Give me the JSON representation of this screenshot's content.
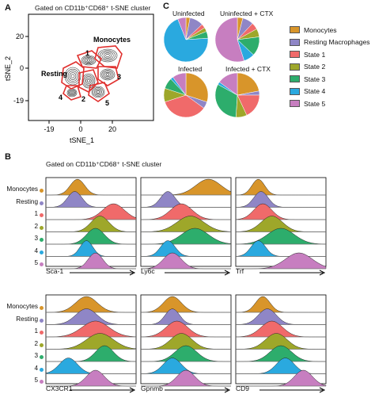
{
  "panels": {
    "a": {
      "letter": "A",
      "gate_label": "Gated on CD11b⁺CD68⁺ t-SNE cluster",
      "xlabel": "tSNE_1",
      "ylabel": "tSNE_2",
      "xticks": [
        "-19",
        "0",
        "20"
      ],
      "yticks": [
        "20",
        "0",
        "-19"
      ],
      "cluster_labels": [
        "Monocytes",
        "Resting",
        "1",
        "2",
        "3",
        "4",
        "5"
      ],
      "gate_color": "#e0302e"
    },
    "b": {
      "letter": "B",
      "gate_label": "Gated on CD11b⁺CD68⁺ t-SNE cluster",
      "markers_row1": [
        "Sca-1",
        "Ly6c",
        "Trf"
      ],
      "markers_row2": [
        "CX3CR1",
        "Gpnmb",
        "CD9"
      ]
    },
    "c": {
      "letter": "C",
      "pies": [
        {
          "title": "Uninfected",
          "values": [
            3,
            10,
            3,
            3,
            5,
            70,
            6
          ]
        },
        {
          "title": "Uninfected + CTX",
          "values": [
            4,
            8,
            5,
            6,
            14,
            8,
            55
          ]
        },
        {
          "title": "Infected",
          "values": [
            30,
            5,
            35,
            10,
            8,
            2,
            10
          ]
        },
        {
          "title": "Infected + CTX",
          "values": [
            22,
            3,
            18,
            8,
            32,
            2,
            15
          ]
        }
      ]
    }
  },
  "populations": [
    {
      "name": "Monocytes",
      "color": "#d8952a"
    },
    {
      "name": "Resting Macrophages",
      "short": "Resting",
      "color": "#8f86c6"
    },
    {
      "name": "State 1",
      "short": "1",
      "color": "#f06a6a"
    },
    {
      "name": "State 2",
      "short": "2",
      "color": "#9ea72a"
    },
    {
      "name": "State 3",
      "short": "3",
      "color": "#2dad6c"
    },
    {
      "name": "State 4",
      "short": "4",
      "color": "#2aa9df"
    },
    {
      "name": "State 5",
      "short": "5",
      "color": "#c77ec0"
    }
  ],
  "chart_data": {
    "type": "pie",
    "series_labels": [
      "Monocytes",
      "Resting Macrophages",
      "State 1",
      "State 2",
      "State 3",
      "State 4",
      "State 5"
    ],
    "pies": [
      {
        "title": "Uninfected",
        "values": [
          3,
          10,
          3,
          3,
          5,
          70,
          6
        ]
      },
      {
        "title": "Uninfected + CTX",
        "values": [
          4,
          8,
          5,
          6,
          14,
          8,
          55
        ]
      },
      {
        "title": "Infected",
        "values": [
          30,
          5,
          35,
          10,
          8,
          2,
          10
        ]
      },
      {
        "title": "Infected + CTX",
        "values": [
          22,
          3,
          18,
          8,
          32,
          2,
          15
        ]
      }
    ]
  }
}
